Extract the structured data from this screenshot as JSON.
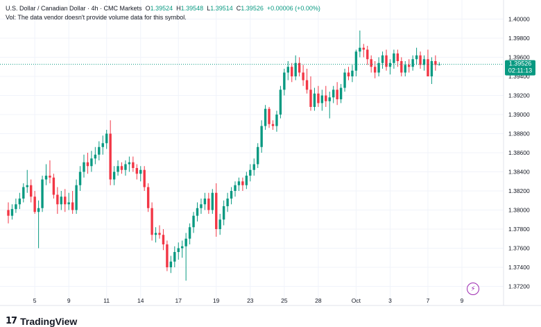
{
  "header": {
    "symbol": "U.S. Dollar / Canadian Dollar · 4h · CMC Markets",
    "open_label": "O",
    "open": "1.39524",
    "high_label": "H",
    "high": "1.39548",
    "low_label": "L",
    "low": "1.39514",
    "close_label": "C",
    "close": "1.39526",
    "change": "+0.00006 (+0.00%)",
    "vol_note": "Vol: The data vendor doesn't provide volume data for this symbol."
  },
  "price_tag": {
    "price": "1.39526",
    "countdown": "02:11:13"
  },
  "logo": {
    "mark": "17",
    "text": "TradingView"
  },
  "colors": {
    "up": "#089981",
    "down": "#f23645",
    "grid": "#f0f3fa",
    "last_line": "#089981",
    "accent": "#9c27b0"
  },
  "icons": {
    "replay": "lightning-bolt-icon"
  },
  "chart_data": {
    "type": "candlestick",
    "ylim": [
      1.37,
      1.402
    ],
    "ytick_labels": [
      "1.40000",
      "1.39800",
      "1.39600",
      "1.39400",
      "1.39200",
      "1.39000",
      "1.38800",
      "1.38600",
      "1.38400",
      "1.38200",
      "1.38000",
      "1.37800",
      "1.37600",
      "1.37400",
      "1.37200"
    ],
    "ytick_values": [
      1.4,
      1.398,
      1.396,
      1.394,
      1.392,
      1.39,
      1.388,
      1.386,
      1.384,
      1.382,
      1.38,
      1.378,
      1.376,
      1.374,
      1.372
    ],
    "x_labels": [
      {
        "label": "5",
        "index": 7
      },
      {
        "label": "9",
        "index": 16
      },
      {
        "label": "11",
        "index": 26
      },
      {
        "label": "14",
        "index": 35
      },
      {
        "label": "17",
        "index": 45
      },
      {
        "label": "19",
        "index": 55
      },
      {
        "label": "23",
        "index": 64
      },
      {
        "label": "25",
        "index": 73
      },
      {
        "label": "28",
        "index": 82
      },
      {
        "label": "Oct",
        "index": 92
      },
      {
        "label": "3",
        "index": 101
      },
      {
        "label": "7",
        "index": 111
      },
      {
        "label": "9",
        "index": 120
      }
    ],
    "last_price": 1.39526,
    "candles": [
      [
        1.38,
        1.3808,
        1.3786,
        1.3794
      ],
      [
        1.3794,
        1.3806,
        1.379,
        1.3801
      ],
      [
        1.3801,
        1.3812,
        1.3797,
        1.3806
      ],
      [
        1.3806,
        1.3818,
        1.3801,
        1.3812
      ],
      [
        1.3812,
        1.3828,
        1.3808,
        1.3824
      ],
      [
        1.3824,
        1.3842,
        1.3818,
        1.3826
      ],
      [
        1.3826,
        1.3832,
        1.3808,
        1.3814
      ],
      [
        1.3814,
        1.382,
        1.3796,
        1.3798
      ],
      [
        1.3798,
        1.381,
        1.376,
        1.3802
      ],
      [
        1.3802,
        1.3836,
        1.3798,
        1.3832
      ],
      [
        1.3832,
        1.3848,
        1.3826,
        1.3836
      ],
      [
        1.3836,
        1.3852,
        1.3828,
        1.3834
      ],
      [
        1.3834,
        1.3838,
        1.3812,
        1.3816
      ],
      [
        1.3816,
        1.3824,
        1.3796,
        1.3806
      ],
      [
        1.3806,
        1.382,
        1.38,
        1.3814
      ],
      [
        1.3814,
        1.3822,
        1.3798,
        1.3806
      ],
      [
        1.3806,
        1.3818,
        1.38,
        1.3808
      ],
      [
        1.3808,
        1.382,
        1.3796,
        1.38
      ],
      [
        1.38,
        1.3832,
        1.3796,
        1.3826
      ],
      [
        1.3826,
        1.3846,
        1.382,
        1.384
      ],
      [
        1.384,
        1.3858,
        1.3834,
        1.385
      ],
      [
        1.385,
        1.386,
        1.3838,
        1.3846
      ],
      [
        1.3846,
        1.3862,
        1.384,
        1.3854
      ],
      [
        1.3854,
        1.3866,
        1.3848,
        1.3858
      ],
      [
        1.3858,
        1.3872,
        1.3852,
        1.3866
      ],
      [
        1.3866,
        1.3878,
        1.3858,
        1.387
      ],
      [
        1.387,
        1.3884,
        1.3864,
        1.388
      ],
      [
        1.388,
        1.3894,
        1.3826,
        1.3832
      ],
      [
        1.3832,
        1.3846,
        1.3826,
        1.384
      ],
      [
        1.384,
        1.3852,
        1.3836,
        1.3846
      ],
      [
        1.3846,
        1.385,
        1.3838,
        1.3842
      ],
      [
        1.3842,
        1.3852,
        1.3836,
        1.3848
      ],
      [
        1.3848,
        1.3856,
        1.384,
        1.385
      ],
      [
        1.385,
        1.3856,
        1.384,
        1.3844
      ],
      [
        1.3844,
        1.3848,
        1.3832,
        1.3838
      ],
      [
        1.3838,
        1.3846,
        1.383,
        1.3842
      ],
      [
        1.3842,
        1.3846,
        1.382,
        1.3824
      ],
      [
        1.3824,
        1.3828,
        1.3798,
        1.3802
      ],
      [
        1.3802,
        1.3808,
        1.3768,
        1.3774
      ],
      [
        1.3774,
        1.3782,
        1.3766,
        1.3776
      ],
      [
        1.3776,
        1.3784,
        1.377,
        1.3774
      ],
      [
        1.3774,
        1.378,
        1.3758,
        1.3764
      ],
      [
        1.3764,
        1.3768,
        1.3736,
        1.374
      ],
      [
        1.374,
        1.3752,
        1.3734,
        1.3746
      ],
      [
        1.3746,
        1.3762,
        1.374,
        1.3756
      ],
      [
        1.3756,
        1.3766,
        1.3748,
        1.376
      ],
      [
        1.376,
        1.3768,
        1.375,
        1.3762
      ],
      [
        1.3762,
        1.3776,
        1.3726,
        1.377
      ],
      [
        1.377,
        1.3786,
        1.3764,
        1.3782
      ],
      [
        1.3782,
        1.3798,
        1.3776,
        1.3794
      ],
      [
        1.3794,
        1.3808,
        1.3788,
        1.3802
      ],
      [
        1.3802,
        1.3812,
        1.3796,
        1.3806
      ],
      [
        1.3806,
        1.3818,
        1.38,
        1.3812
      ],
      [
        1.3812,
        1.3818,
        1.3796,
        1.38
      ],
      [
        1.38,
        1.3822,
        1.3796,
        1.3818
      ],
      [
        1.3818,
        1.3828,
        1.3772,
        1.378
      ],
      [
        1.378,
        1.3796,
        1.3774,
        1.379
      ],
      [
        1.379,
        1.381,
        1.3784,
        1.3804
      ],
      [
        1.3804,
        1.3818,
        1.3798,
        1.3812
      ],
      [
        1.3812,
        1.3824,
        1.3806,
        1.382
      ],
      [
        1.382,
        1.383,
        1.3814,
        1.3826
      ],
      [
        1.3826,
        1.3834,
        1.382,
        1.383
      ],
      [
        1.383,
        1.3834,
        1.382,
        1.3826
      ],
      [
        1.3826,
        1.384,
        1.3822,
        1.3836
      ],
      [
        1.3836,
        1.3848,
        1.383,
        1.3842
      ],
      [
        1.3842,
        1.3854,
        1.3836,
        1.3848
      ],
      [
        1.3848,
        1.387,
        1.3844,
        1.3866
      ],
      [
        1.3866,
        1.3894,
        1.386,
        1.3888
      ],
      [
        1.3888,
        1.391,
        1.3884,
        1.3906
      ],
      [
        1.3906,
        1.3908,
        1.3886,
        1.389
      ],
      [
        1.389,
        1.3894,
        1.3884,
        1.3888
      ],
      [
        1.3888,
        1.3904,
        1.3882,
        1.39
      ],
      [
        1.39,
        1.393,
        1.3896,
        1.3926
      ],
      [
        1.3926,
        1.3948,
        1.392,
        1.3944
      ],
      [
        1.3944,
        1.3956,
        1.3936,
        1.395
      ],
      [
        1.395,
        1.3954,
        1.3934,
        1.394
      ],
      [
        1.394,
        1.3962,
        1.3936,
        1.3954
      ],
      [
        1.3954,
        1.396,
        1.394,
        1.3944
      ],
      [
        1.3944,
        1.3952,
        1.393,
        1.3936
      ],
      [
        1.3936,
        1.3948,
        1.3922,
        1.3926
      ],
      [
        1.3926,
        1.394,
        1.3904,
        1.3908
      ],
      [
        1.3908,
        1.3928,
        1.3904,
        1.3922
      ],
      [
        1.3922,
        1.393,
        1.3908,
        1.3912
      ],
      [
        1.3912,
        1.3926,
        1.3904,
        1.392
      ],
      [
        1.392,
        1.393,
        1.3908,
        1.3914
      ],
      [
        1.3914,
        1.3924,
        1.3896,
        1.3918
      ],
      [
        1.3918,
        1.393,
        1.3912,
        1.3926
      ],
      [
        1.3926,
        1.3934,
        1.391,
        1.3916
      ],
      [
        1.3916,
        1.3932,
        1.3912,
        1.3928
      ],
      [
        1.3928,
        1.3948,
        1.3924,
        1.3944
      ],
      [
        1.3944,
        1.395,
        1.3936,
        1.394
      ],
      [
        1.394,
        1.3952,
        1.3934,
        1.3946
      ],
      [
        1.3946,
        1.3968,
        1.394,
        1.3966
      ],
      [
        1.3966,
        1.3988,
        1.396,
        1.397
      ],
      [
        1.397,
        1.3974,
        1.396,
        1.3968
      ],
      [
        1.3968,
        1.3972,
        1.3952,
        1.3958
      ],
      [
        1.3958,
        1.3962,
        1.3944,
        1.395
      ],
      [
        1.395,
        1.3956,
        1.3938,
        1.3944
      ],
      [
        1.3944,
        1.396,
        1.394,
        1.3954
      ],
      [
        1.3954,
        1.3966,
        1.3948,
        1.3962
      ],
      [
        1.3962,
        1.3968,
        1.3946,
        1.395
      ],
      [
        1.395,
        1.3958,
        1.3942,
        1.3954
      ],
      [
        1.3954,
        1.3968,
        1.3948,
        1.3964
      ],
      [
        1.3964,
        1.3968,
        1.395,
        1.3956
      ],
      [
        1.3956,
        1.396,
        1.394,
        1.3944
      ],
      [
        1.3944,
        1.3956,
        1.394,
        1.3952
      ],
      [
        1.3952,
        1.3958,
        1.3944,
        1.395
      ],
      [
        1.395,
        1.3962,
        1.3946,
        1.3958
      ],
      [
        1.3958,
        1.397,
        1.3952,
        1.3962
      ],
      [
        1.3962,
        1.3966,
        1.3948,
        1.3952
      ],
      [
        1.3952,
        1.3962,
        1.3946,
        1.3958
      ],
      [
        1.3958,
        1.3968,
        1.394,
        1.394
      ],
      [
        1.394,
        1.396,
        1.3932,
        1.3956
      ],
      [
        1.3956,
        1.3962,
        1.3946,
        1.3952
      ],
      [
        1.39524,
        1.39548,
        1.39514,
        1.39526
      ]
    ]
  }
}
